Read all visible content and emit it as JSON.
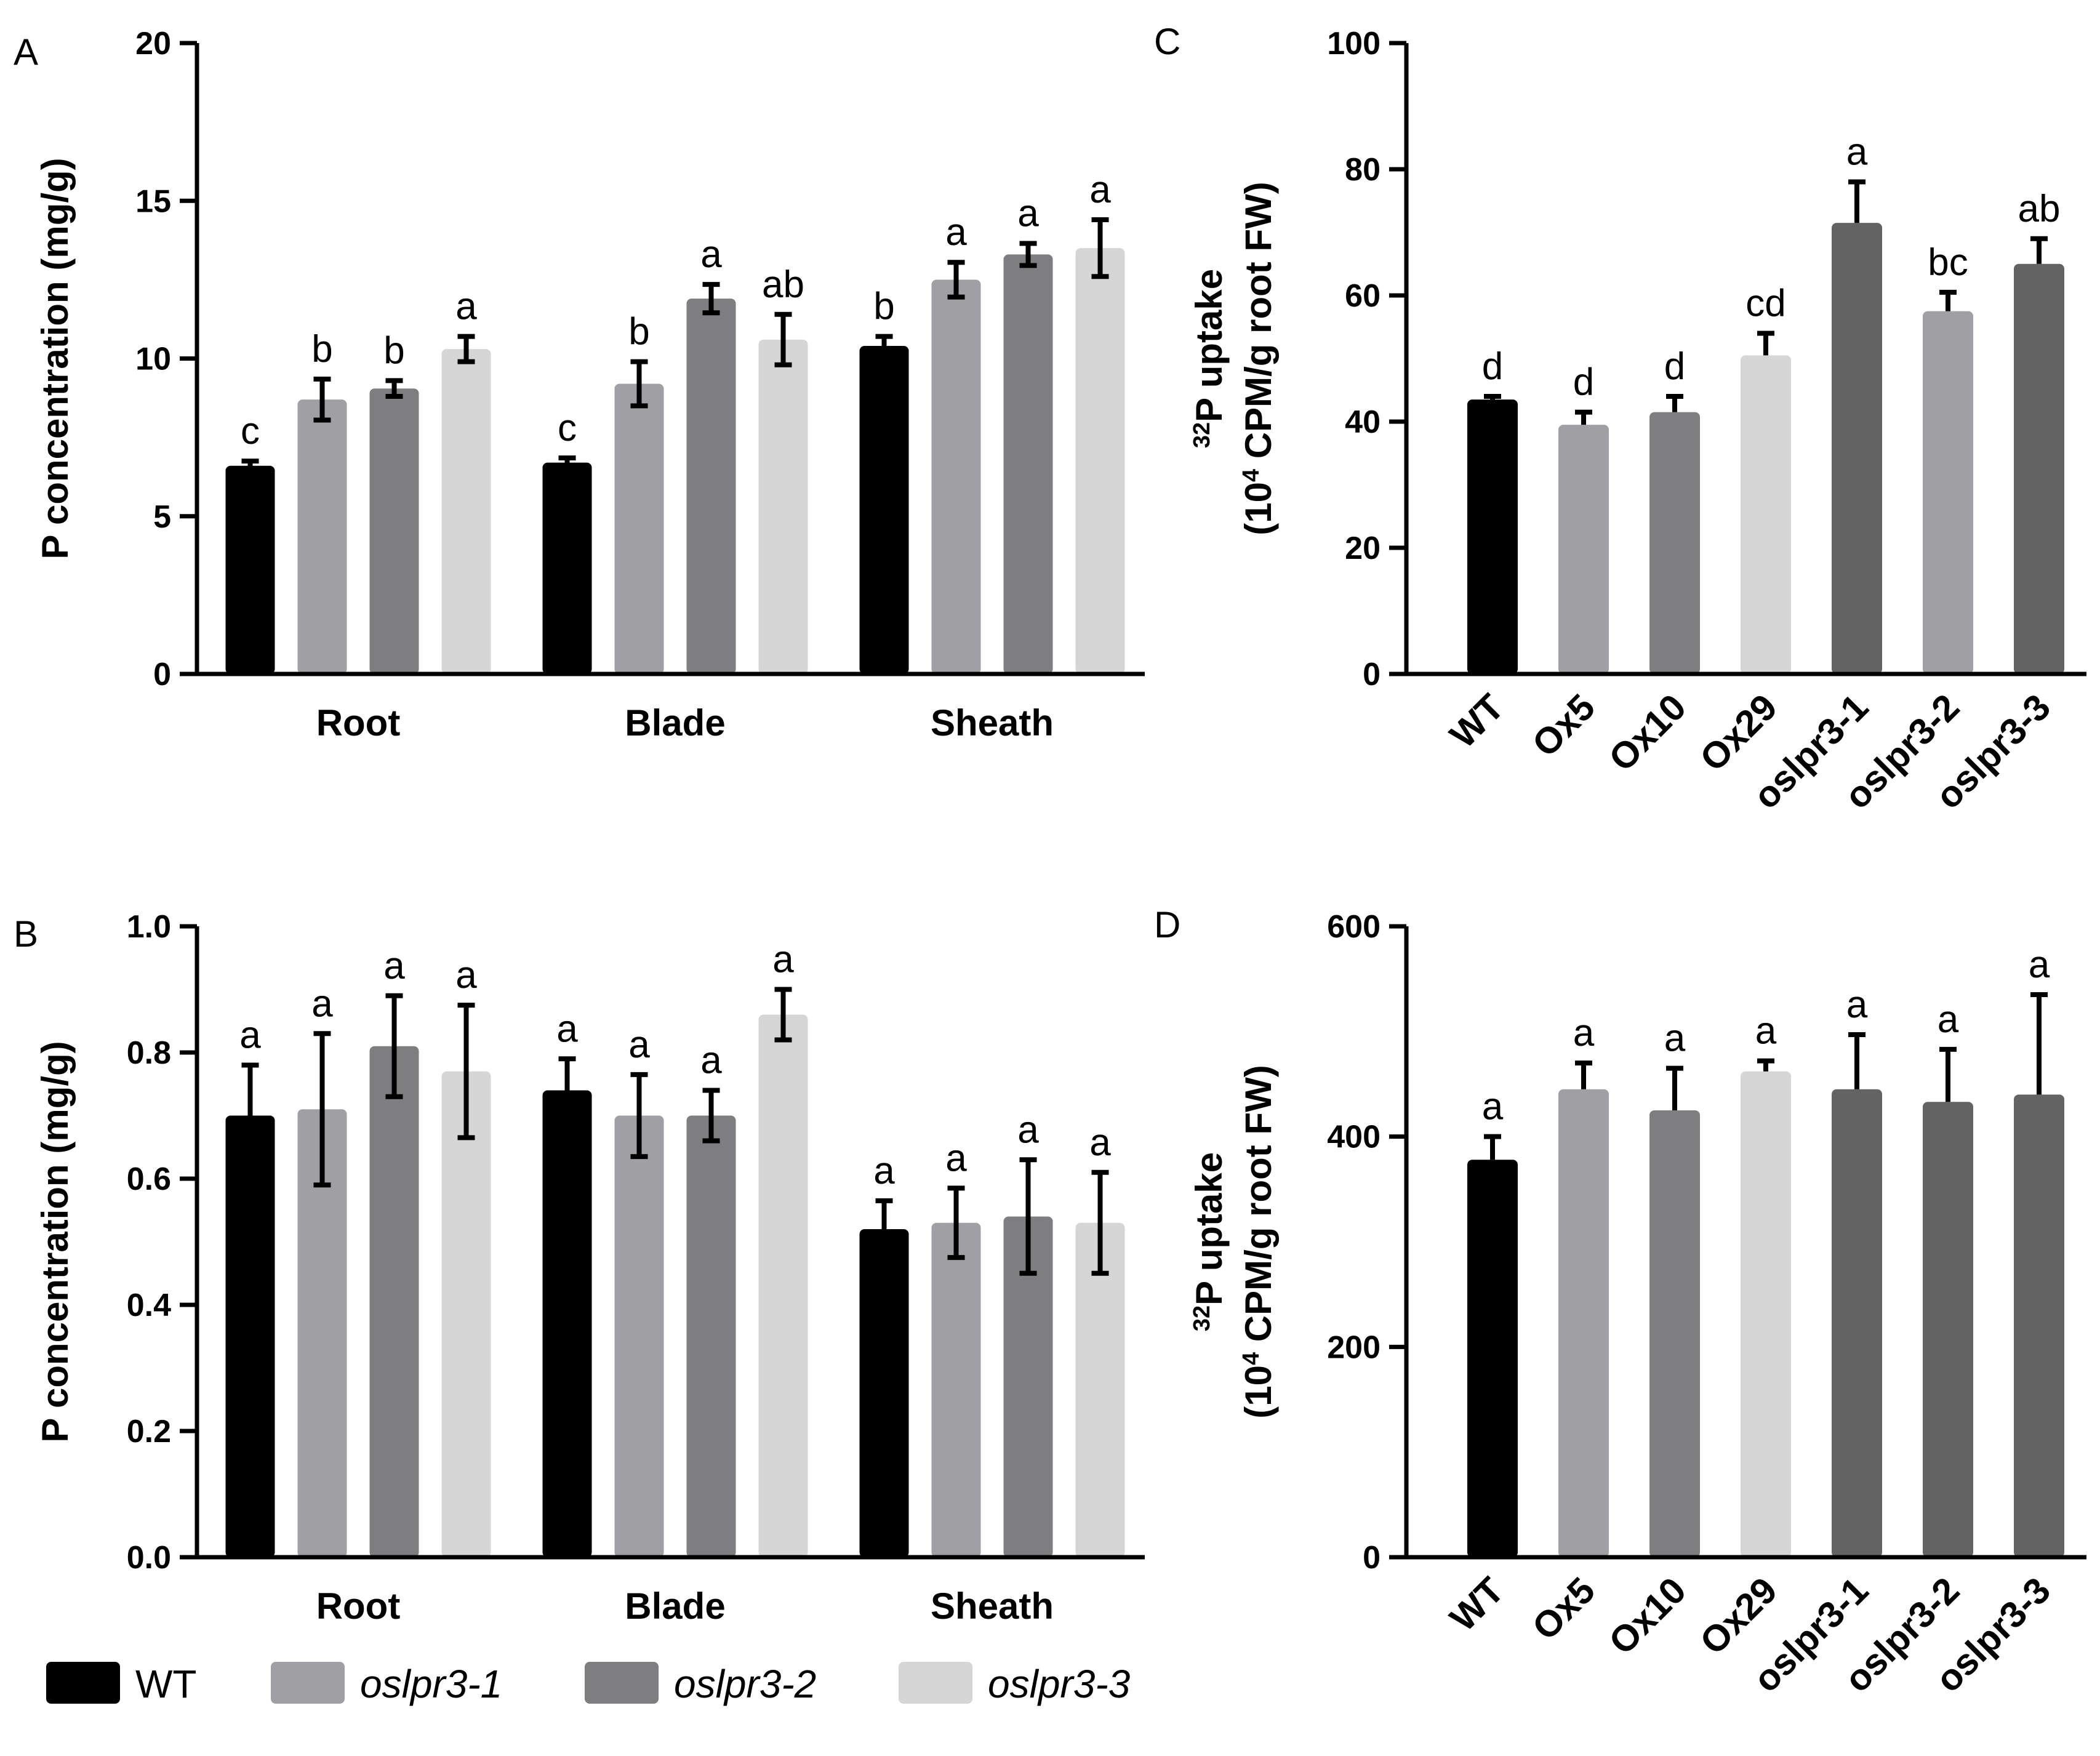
{
  "colors": {
    "WT": "#000000",
    "oslpr3-1": "#a0a0a4",
    "oslpr3-2": "#7e7e80",
    "oslpr3-3": "#d6d6d6",
    "Ox5": "#a0a0a4",
    "Ox10": "#7e7e80",
    "Ox29": "#d6d6d6",
    "C_oslpr3-1": "#636363",
    "C_oslpr3-2": "#a0a0a4",
    "C_oslpr3-3": "#636363",
    "D_oslpr3": "#636363"
  },
  "legend": {
    "items": [
      {
        "label": "WT",
        "italic": false,
        "color": "#000000"
      },
      {
        "label": "oslpr3-1",
        "italic": true,
        "color": "#a0a0a4"
      },
      {
        "label": "oslpr3-2",
        "italic": true,
        "color": "#7e7e80"
      },
      {
        "label": "oslpr3-3",
        "italic": true,
        "color": "#d6d6d6"
      }
    ]
  },
  "chart_data": [
    {
      "panel": "A",
      "type": "bar",
      "ylabel": "P concentration (mg/g)",
      "ylim": [
        0,
        20
      ],
      "yticks": [
        "0",
        "5",
        "10",
        "15",
        "20"
      ],
      "categories": [
        "Root",
        "Blade",
        "Sheath"
      ],
      "series": [
        {
          "name": "WT",
          "values": [
            6.6,
            6.7,
            10.4
          ],
          "errors": [
            0.15,
            0.15,
            0.3
          ],
          "sig": [
            "c",
            "c",
            "b"
          ]
        },
        {
          "name": "oslpr3-1",
          "values": [
            8.7,
            9.2,
            12.5
          ],
          "errors": [
            0.65,
            0.7,
            0.55
          ],
          "sig": [
            "b",
            "b",
            "a"
          ]
        },
        {
          "name": "oslpr3-2",
          "values": [
            9.05,
            11.9,
            13.3
          ],
          "errors": [
            0.25,
            0.45,
            0.35
          ],
          "sig": [
            "b",
            "a",
            "a"
          ]
        },
        {
          "name": "oslpr3-3",
          "values": [
            10.3,
            10.6,
            13.5
          ],
          "errors": [
            0.4,
            0.8,
            0.9
          ],
          "sig": [
            "a",
            "ab",
            "a"
          ]
        }
      ]
    },
    {
      "panel": "B",
      "type": "bar",
      "ylabel": "P concentration (mg/g)",
      "ylim": [
        0,
        1.0
      ],
      "yticks": [
        "0.0",
        "0.2",
        "0.4",
        "0.6",
        "0.8",
        "1.0"
      ],
      "categories": [
        "Root",
        "Blade",
        "Sheath"
      ],
      "series": [
        {
          "name": "WT",
          "values": [
            0.7,
            0.74,
            0.52
          ],
          "errors": [
            0.08,
            0.05,
            0.045
          ],
          "sig": [
            "a",
            "a",
            "a"
          ]
        },
        {
          "name": "oslpr3-1",
          "values": [
            0.71,
            0.7,
            0.53
          ],
          "errors": [
            0.12,
            0.065,
            0.055
          ],
          "sig": [
            "a",
            "a",
            "a"
          ]
        },
        {
          "name": "oslpr3-2",
          "values": [
            0.81,
            0.7,
            0.54
          ],
          "errors": [
            0.08,
            0.04,
            0.09
          ],
          "sig": [
            "a",
            "a",
            "a"
          ]
        },
        {
          "name": "oslpr3-3",
          "values": [
            0.77,
            0.86,
            0.53
          ],
          "errors": [
            0.105,
            0.04,
            0.08
          ],
          "sig": [
            "a",
            "a",
            "a"
          ]
        }
      ]
    },
    {
      "panel": "C",
      "type": "bar",
      "ylabel_line1_sup": "32",
      "ylabel_line1": "P uptake",
      "ylabel_line2_pre": "(10",
      "ylabel_line2_sup": "4",
      "ylabel_line2_post": " CPM/g root FW)",
      "ylim": [
        0,
        100
      ],
      "yticks": [
        "0",
        "20",
        "40",
        "60",
        "80",
        "100"
      ],
      "categories": [
        "WT",
        "Ox5",
        "Ox10",
        "Ox29",
        "oslpr3-1",
        "oslpr3-2",
        "oslpr3-3"
      ],
      "values": [
        43.5,
        39.5,
        41.5,
        50.5,
        71.5,
        57.5,
        65.0
      ],
      "errors": [
        0.5,
        2.0,
        2.5,
        3.5,
        6.5,
        3.0,
        4.0
      ],
      "sig": [
        "d",
        "d",
        "d",
        "cd",
        "a",
        "bc",
        "ab"
      ],
      "bar_colors": [
        "#000000",
        "#a0a0a4",
        "#7e7e80",
        "#d6d6d6",
        "#636363",
        "#a0a0a4",
        "#636363"
      ]
    },
    {
      "panel": "D",
      "type": "bar",
      "ylabel_line1_sup": "32",
      "ylabel_line1": "P uptake",
      "ylabel_line2_pre": "(10",
      "ylabel_line2_sup": "4",
      "ylabel_line2_post": " CPM/g root FW)",
      "ylim": [
        0,
        600
      ],
      "yticks": [
        "0",
        "200",
        "400",
        "600"
      ],
      "categories": [
        "WT",
        "Ox5",
        "Ox10",
        "Ox29",
        "oslpr3-1",
        "oslpr3-2",
        "oslpr3-3"
      ],
      "values": [
        378,
        445,
        425,
        462,
        445,
        433,
        440
      ],
      "errors": [
        22,
        25,
        40,
        10,
        52,
        50,
        95
      ],
      "sig": [
        "a",
        "a",
        "a",
        "a",
        "a",
        "a",
        "a"
      ],
      "bar_colors": [
        "#000000",
        "#a0a0a4",
        "#7e7e80",
        "#d6d6d6",
        "#636363",
        "#636363",
        "#636363"
      ]
    }
  ]
}
